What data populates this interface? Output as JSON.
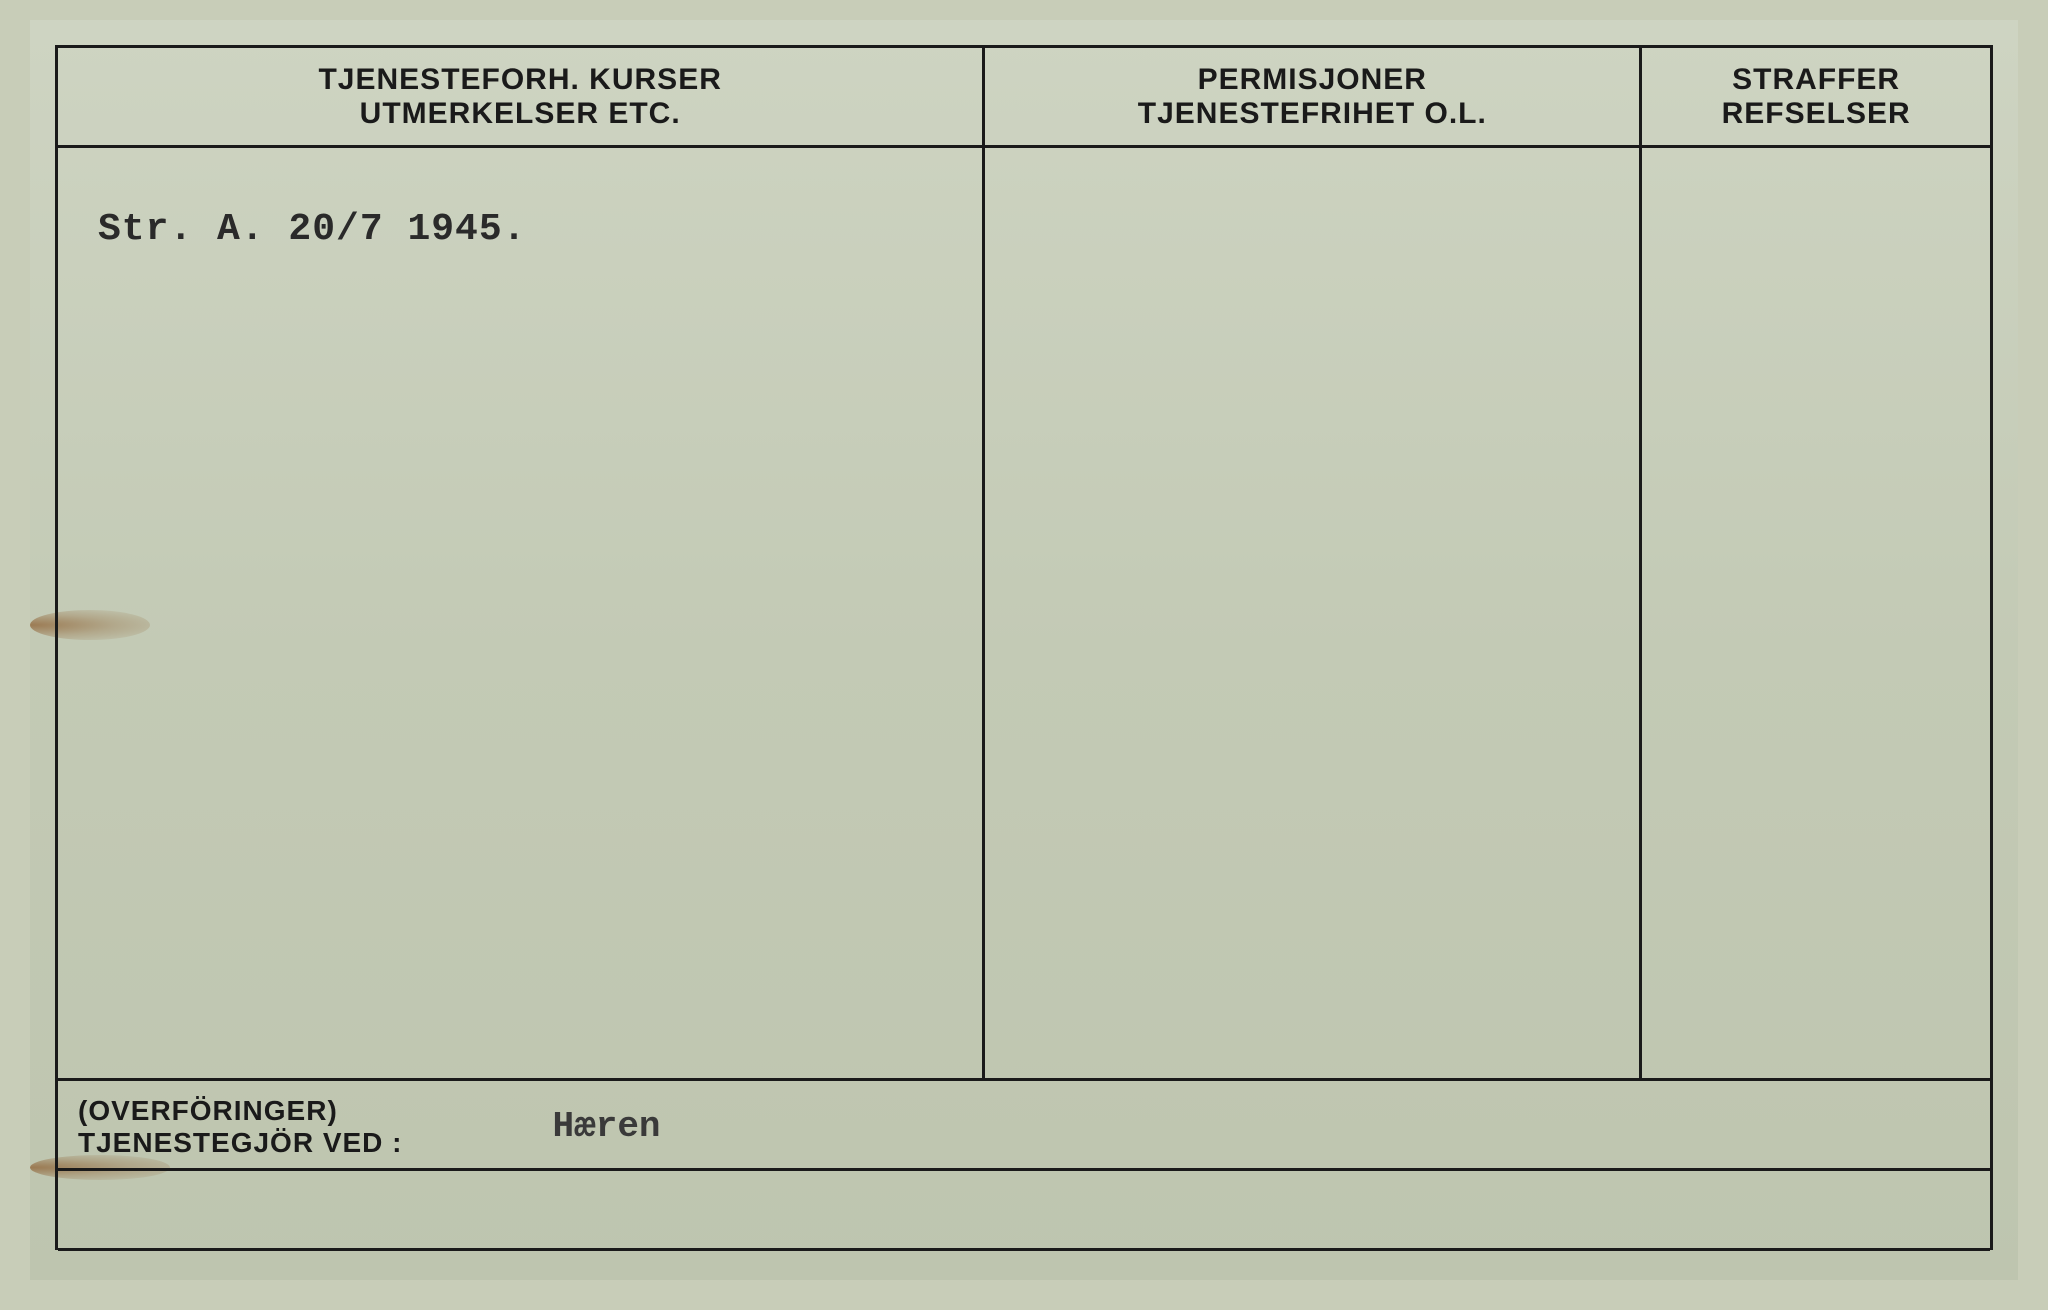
{
  "card": {
    "background_color": "#c8cdb8",
    "border_color": "#1a1a1a",
    "border_width": 3
  },
  "columns": {
    "col1": {
      "header_line1": "TJENESTEFORH. KURSER",
      "header_line2": "UTMERKELSER ETC.",
      "width_pct": 48
    },
    "col2": {
      "header_line1": "PERMISJONER",
      "header_line2": "TJENESTEFRIHET O.L.",
      "width_pct": 34
    },
    "col3": {
      "header_line1": "STRAFFER",
      "header_line2": "REFSELSER",
      "width_pct": 18
    }
  },
  "body": {
    "col1_entry": "Str. A. 20/7 1945."
  },
  "footer": {
    "label_line1": "(OVERFÖRINGER)",
    "label_line2": "TJENESTEGJÖR VED :",
    "value": "Hæren"
  },
  "typography": {
    "header_fontsize": 30,
    "header_weight": 600,
    "typed_fontsize": 38,
    "typed_font": "Courier New",
    "footer_label_fontsize": 28
  }
}
